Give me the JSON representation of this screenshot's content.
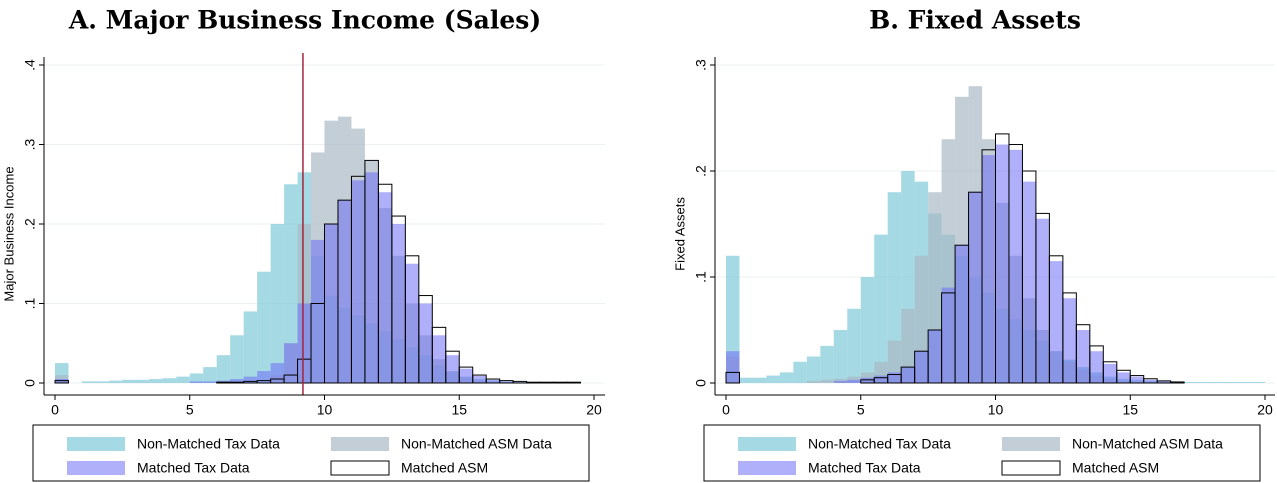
{
  "chart_data": [
    {
      "type": "histogram",
      "title": "A. Major Business Income (Sales)",
      "y_label": "Major Business Income",
      "bins": [
        0,
        0.5,
        1,
        1.5,
        2,
        2.5,
        3,
        3.5,
        4,
        4.5,
        5,
        5.5,
        6,
        6.5,
        7,
        7.5,
        8,
        8.5,
        9,
        9.5,
        10,
        10.5,
        11,
        11.5,
        12,
        12.5,
        13,
        13.5,
        14,
        14.5,
        15,
        15.5,
        16,
        16.5,
        17,
        17.5,
        18,
        18.5,
        19,
        19.5,
        20
      ],
      "xlim": [
        0,
        20
      ],
      "xticks": [
        0,
        5,
        10,
        15,
        20
      ],
      "ylim": [
        0,
        0.4
      ],
      "yticks": [
        0,
        {
          "value": 0.1,
          "label": ".1"
        },
        {
          "value": 0.2,
          "label": ".2"
        },
        {
          "value": 0.3,
          "label": ".3"
        },
        {
          "value": 0.4,
          "label": ".4"
        }
      ],
      "grid": true,
      "vline": {
        "x": 9.2,
        "color": "#a3243b"
      },
      "series": [
        {
          "name": "Non-Matched Tax Data",
          "color": "#8fd0dc",
          "values": [
            0.025,
            0,
            0.002,
            0.002,
            0.003,
            0.004,
            0.004,
            0.005,
            0.006,
            0.008,
            0.012,
            0.02,
            0.035,
            0.06,
            0.09,
            0.14,
            0.2,
            0.25,
            0.265,
            0.16,
            0.11,
            0.095,
            0.085,
            0.075,
            0.065,
            0.055,
            0.045,
            0.035,
            0.022,
            0.014,
            0.008,
            0.005,
            0.003,
            0.002,
            0.001,
            0.001,
            0,
            0,
            0,
            0
          ]
        },
        {
          "name": "Non-Matched ASM Data",
          "color": "#a9b9c4",
          "values": [
            0.01,
            0,
            0,
            0,
            0,
            0,
            0,
            0,
            0,
            0,
            0,
            0,
            0,
            0,
            0,
            0,
            0.01,
            0.05,
            0.2,
            0.29,
            0.33,
            0.335,
            0.32,
            0.28,
            0.22,
            0.16,
            0.1,
            0.06,
            0.03,
            0.015,
            0.007,
            0.003,
            0.001,
            0,
            0,
            0,
            0,
            0,
            0,
            0
          ]
        },
        {
          "name": "Matched Tax Data",
          "color": "#6e6ef5",
          "values": [
            0.005,
            0,
            0,
            0,
            0,
            0,
            0,
            0,
            0,
            0,
            0.002,
            0.002,
            0.003,
            0.005,
            0.008,
            0.015,
            0.025,
            0.05,
            0.1,
            0.18,
            0.2,
            0.23,
            0.255,
            0.265,
            0.24,
            0.2,
            0.15,
            0.1,
            0.06,
            0.035,
            0.018,
            0.009,
            0.004,
            0.002,
            0.001,
            0,
            0,
            0,
            0,
            0
          ]
        },
        {
          "name": "Matched ASM",
          "color": "#000000",
          "outline": true,
          "values": [
            0.003,
            0,
            0,
            0,
            0,
            0,
            0,
            0,
            0,
            0,
            0,
            0,
            0.001,
            0.001,
            0.002,
            0.003,
            0.005,
            0.01,
            0.03,
            0.1,
            0.2,
            0.23,
            0.26,
            0.28,
            0.25,
            0.21,
            0.16,
            0.11,
            0.07,
            0.04,
            0.02,
            0.01,
            0.005,
            0.003,
            0.002,
            0.001,
            0.001,
            0.001,
            0.001,
            0
          ]
        }
      ]
    },
    {
      "type": "histogram",
      "title": "B. Fixed Assets",
      "y_label": "Fixed Assets",
      "bins": [
        0,
        0.5,
        1,
        1.5,
        2,
        2.5,
        3,
        3.5,
        4,
        4.5,
        5,
        5.5,
        6,
        6.5,
        7,
        7.5,
        8,
        8.5,
        9,
        9.5,
        10,
        10.5,
        11,
        11.5,
        12,
        12.5,
        13,
        13.5,
        14,
        14.5,
        15,
        15.5,
        16,
        16.5,
        17,
        17.5,
        18,
        18.5,
        19,
        19.5,
        20
      ],
      "xlim": [
        0,
        20
      ],
      "xticks": [
        0,
        5,
        10,
        15,
        20
      ],
      "ylim": [
        0,
        0.3
      ],
      "yticks": [
        0,
        {
          "value": 0.1,
          "label": ".1"
        },
        {
          "value": 0.2,
          "label": ".2"
        },
        {
          "value": 0.3,
          "label": ".3"
        }
      ],
      "grid": true,
      "series": [
        {
          "name": "Non-Matched Tax Data",
          "color": "#8fd0dc",
          "values": [
            0.12,
            0.005,
            0.005,
            0.007,
            0.01,
            0.02,
            0.025,
            0.035,
            0.05,
            0.07,
            0.1,
            0.14,
            0.18,
            0.2,
            0.19,
            0.16,
            0.14,
            0.12,
            0.1,
            0.085,
            0.07,
            0.06,
            0.05,
            0.04,
            0.03,
            0.022,
            0.015,
            0.01,
            0.006,
            0.004,
            0.003,
            0.002,
            0.001,
            0.001,
            0.001,
            0.001,
            0.001,
            0.001,
            0.001,
            0.001
          ]
        },
        {
          "name": "Non-Matched ASM Data",
          "color": "#a9b9c4",
          "values": [
            0.025,
            0,
            0,
            0,
            0,
            0,
            0.002,
            0.003,
            0.004,
            0.006,
            0.01,
            0.02,
            0.04,
            0.07,
            0.12,
            0.18,
            0.23,
            0.27,
            0.28,
            0.23,
            0.17,
            0.12,
            0.08,
            0.05,
            0.03,
            0.02,
            0.012,
            0.007,
            0.004,
            0.002,
            0.001,
            0,
            0,
            0,
            0,
            0,
            0,
            0,
            0,
            0
          ]
        },
        {
          "name": "Matched Tax Data",
          "color": "#6e6ef5",
          "values": [
            0.03,
            0,
            0,
            0,
            0,
            0,
            0,
            0,
            0.002,
            0.003,
            0.005,
            0.007,
            0.01,
            0.015,
            0.03,
            0.05,
            0.09,
            0.13,
            0.18,
            0.215,
            0.225,
            0.22,
            0.19,
            0.155,
            0.115,
            0.08,
            0.05,
            0.03,
            0.018,
            0.01,
            0.006,
            0.003,
            0.002,
            0.001,
            0,
            0,
            0,
            0,
            0,
            0
          ]
        },
        {
          "name": "Matched ASM",
          "color": "#000000",
          "outline": true,
          "values": [
            0.01,
            0,
            0,
            0,
            0,
            0,
            0,
            0,
            0,
            0,
            0.003,
            0.005,
            0.008,
            0.015,
            0.03,
            0.05,
            0.085,
            0.13,
            0.18,
            0.22,
            0.235,
            0.225,
            0.2,
            0.16,
            0.12,
            0.085,
            0.055,
            0.035,
            0.02,
            0.012,
            0.007,
            0.004,
            0.002,
            0.001,
            0,
            0,
            0,
            0,
            0,
            0
          ]
        }
      ]
    }
  ]
}
